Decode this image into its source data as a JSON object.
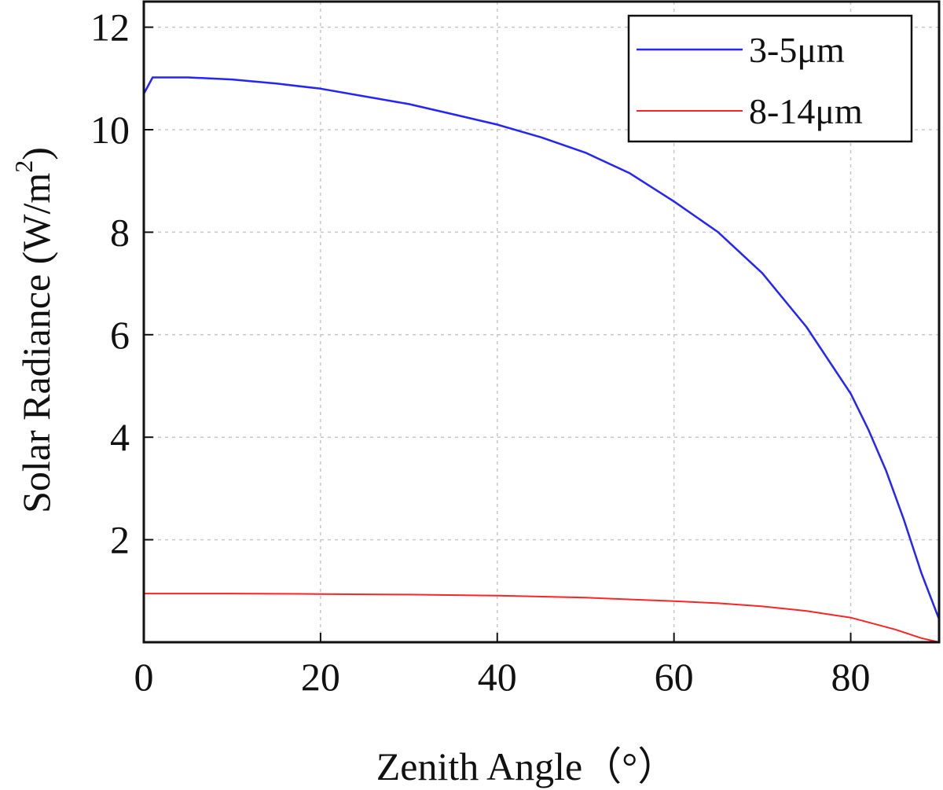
{
  "chart_data": {
    "type": "line",
    "title": "",
    "xlabel": "Zenith Angle（°）",
    "ylabel": "Solar Radiance (W/m",
    "ylabel_superscript": "2",
    "ylabel_suffix": ")",
    "xlim": [
      0,
      90
    ],
    "ylim": [
      0,
      12.5
    ],
    "xticks": [
      0,
      20,
      40,
      60,
      80
    ],
    "yticks": [
      2,
      4,
      6,
      8,
      10,
      12
    ],
    "grid": true,
    "legend_position": "top-right",
    "series": [
      {
        "name": "3-5μm",
        "color": "#2424ff",
        "x": [
          0,
          1,
          5,
          10,
          15,
          20,
          25,
          30,
          35,
          40,
          45,
          50,
          55,
          60,
          65,
          70,
          75,
          80,
          82,
          84,
          86,
          88,
          90
        ],
        "y": [
          10.7,
          11.02,
          11.02,
          10.98,
          10.9,
          10.8,
          10.65,
          10.5,
          10.3,
          10.1,
          9.85,
          9.55,
          9.15,
          8.6,
          8.0,
          7.2,
          6.15,
          4.85,
          4.15,
          3.35,
          2.4,
          1.35,
          0.45
        ]
      },
      {
        "name": "8-14μm",
        "color": "#ff2424",
        "x": [
          0,
          10,
          20,
          30,
          40,
          50,
          60,
          65,
          70,
          75,
          80,
          85,
          88,
          90
        ],
        "y": [
          0.95,
          0.95,
          0.94,
          0.93,
          0.91,
          0.87,
          0.8,
          0.76,
          0.7,
          0.61,
          0.48,
          0.25,
          0.08,
          0.0
        ]
      }
    ]
  }
}
